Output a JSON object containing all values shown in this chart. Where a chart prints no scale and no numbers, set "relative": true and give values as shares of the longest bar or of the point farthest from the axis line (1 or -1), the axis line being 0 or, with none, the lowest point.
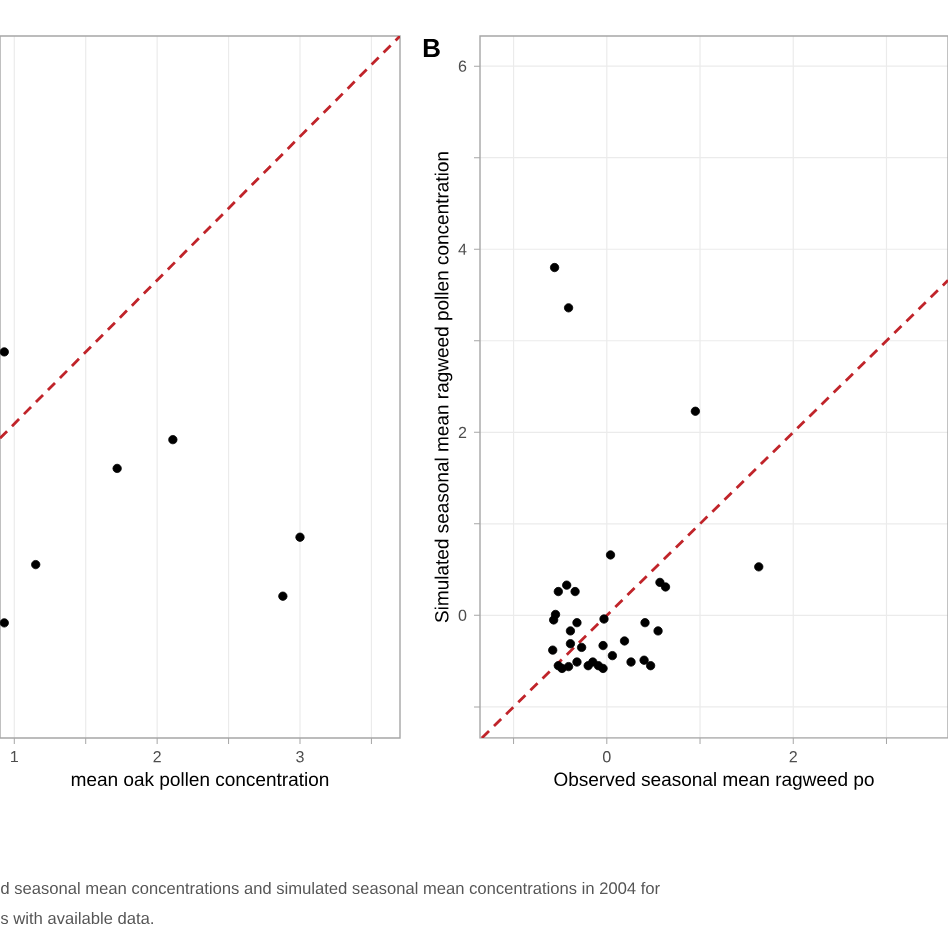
{
  "chart_data": [
    {
      "type": "scatter",
      "xlabel": "mean oak pollen concentration",
      "annotations": [
        "d seasonal mean concentrations and simulated seasonal mean concentrations in 2004 for",
        "s with available data."
      ],
      "relative": true,
      "xlim": [
        0.9,
        3.7
      ],
      "xticks": [
        1,
        {
          "value": 1.5,
          "label": null
        },
        2,
        {
          "value": 2.5,
          "label": null
        },
        3,
        {
          "value": 3.5,
          "label": null
        }
      ],
      "grid": true,
      "series": [
        {
          "type": "line",
          "color": "#c0242a",
          "line_style": "dashed",
          "marker": "none",
          "x": [
            0.9,
            3.7
          ],
          "values": [
            0.427,
            1
          ]
        },
        {
          "color": "#000000",
          "marker": "circle",
          "x": [
            0.93,
            0.93,
            1.15,
            1.72,
            2.11,
            2.88,
            3.0
          ],
          "values": [
            0.55,
            0.164,
            0.247,
            0.384,
            0.425,
            0.202,
            0.286
          ]
        }
      ]
    },
    {
      "type": "scatter",
      "title": "B",
      "xlabel": "Observed seasonal mean ragweed po",
      "ylabel": "Simulated seasonal mean ragweed pollen concentration",
      "xlim": [
        -1.36,
        3.66
      ],
      "ylim": [
        -1.34,
        6.33
      ],
      "xticks": [
        {
          "value": -1,
          "label": null
        },
        0,
        {
          "value": 1,
          "label": null
        },
        2,
        {
          "value": 3,
          "label": null
        }
      ],
      "yticks": [
        {
          "value": -1,
          "label": null
        },
        0,
        {
          "value": 1,
          "label": null
        },
        2,
        {
          "value": 3,
          "label": null
        },
        4,
        {
          "value": 5,
          "label": null
        },
        6
      ],
      "grid": true,
      "series": [
        {
          "type": "line",
          "color": "#c0242a",
          "line_style": "dashed",
          "marker": "none",
          "x": [
            -1.34,
            3.66
          ],
          "values": [
            -1.34,
            3.66
          ]
        },
        {
          "color": "#000000",
          "marker": "circle",
          "x": [
            -0.56,
            -0.41,
            0.95,
            0.04,
            1.63,
            0.57,
            0.63,
            -0.43,
            -0.52,
            -0.34,
            -0.55,
            -0.57,
            -0.03,
            -0.39,
            -0.32,
            0.41,
            0.55,
            -0.39,
            -0.27,
            -0.04,
            0.19,
            -0.58,
            0.06,
            -0.52,
            -0.48,
            -0.41,
            -0.32,
            -0.2,
            -0.15,
            -0.09,
            -0.04,
            0.26,
            0.4,
            0.47
          ],
          "values": [
            3.8,
            3.36,
            2.23,
            0.66,
            0.53,
            0.36,
            0.31,
            0.33,
            0.26,
            0.26,
            0.01,
            -0.05,
            -0.04,
            -0.17,
            -0.08,
            -0.08,
            -0.17,
            -0.31,
            -0.35,
            -0.33,
            -0.28,
            -0.38,
            -0.44,
            -0.55,
            -0.58,
            -0.56,
            -0.51,
            -0.55,
            -0.51,
            -0.55,
            -0.58,
            -0.51,
            -0.49,
            -0.55
          ]
        }
      ]
    }
  ]
}
